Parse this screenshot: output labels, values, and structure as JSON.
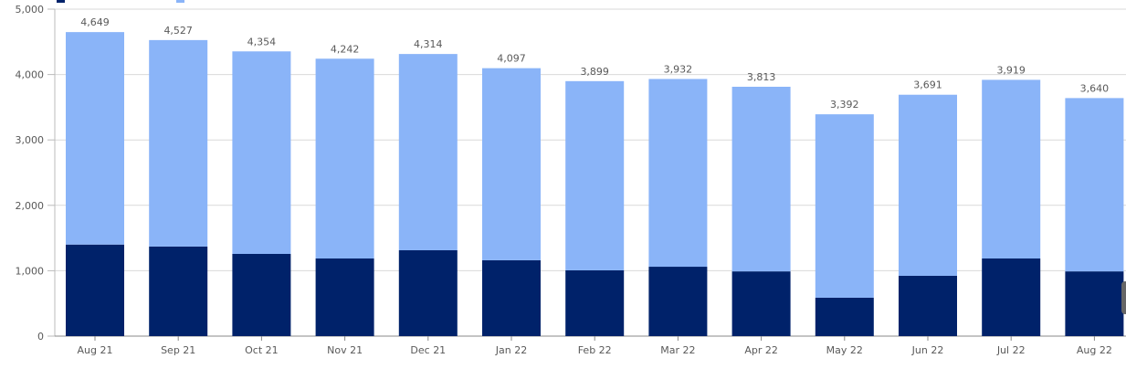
{
  "chart_data": {
    "type": "bar",
    "stacked": true,
    "categories": [
      "Aug 21",
      "Sep 21",
      "Oct 21",
      "Nov 21",
      "Dec 21",
      "Jan 22",
      "Feb 22",
      "Mar 22",
      "Apr 22",
      "May 22",
      "Jun 22",
      "Jul 22",
      "Aug 22"
    ],
    "series": [
      {
        "values": [
          1400,
          1370,
          1257,
          1187,
          1313,
          1160,
          1006,
          1061,
          990,
          587,
          922,
          1187,
          990
        ],
        "color": "#00226a"
      },
      {
        "values": [
          3249,
          3157,
          3097,
          3055,
          3001,
          2937,
          2893,
          2871,
          2823,
          2805,
          2769,
          2732,
          2650
        ],
        "color": "#8ab4f8"
      }
    ],
    "totals": [
      4649,
      4527,
      4354,
      4242,
      4314,
      4097,
      3899,
      3932,
      3813,
      3392,
      3691,
      3919,
      3640
    ],
    "total_labels": [
      "4,649",
      "4,527",
      "4,354",
      "4,242",
      "4,314",
      "4,097",
      "3,899",
      "3,932",
      "3,813",
      "3,392",
      "3,691",
      "3,919",
      "3,640"
    ],
    "ylim": [
      0,
      5000
    ],
    "yticks": [
      0,
      1000,
      2000,
      3000,
      4000,
      5000
    ],
    "ytick_labels": [
      "0",
      "1,000",
      "2,000",
      "3,000",
      "4,000",
      "5,000"
    ],
    "grid": true,
    "legend": "top-left",
    "gridColor": "#d9d9d9"
  }
}
